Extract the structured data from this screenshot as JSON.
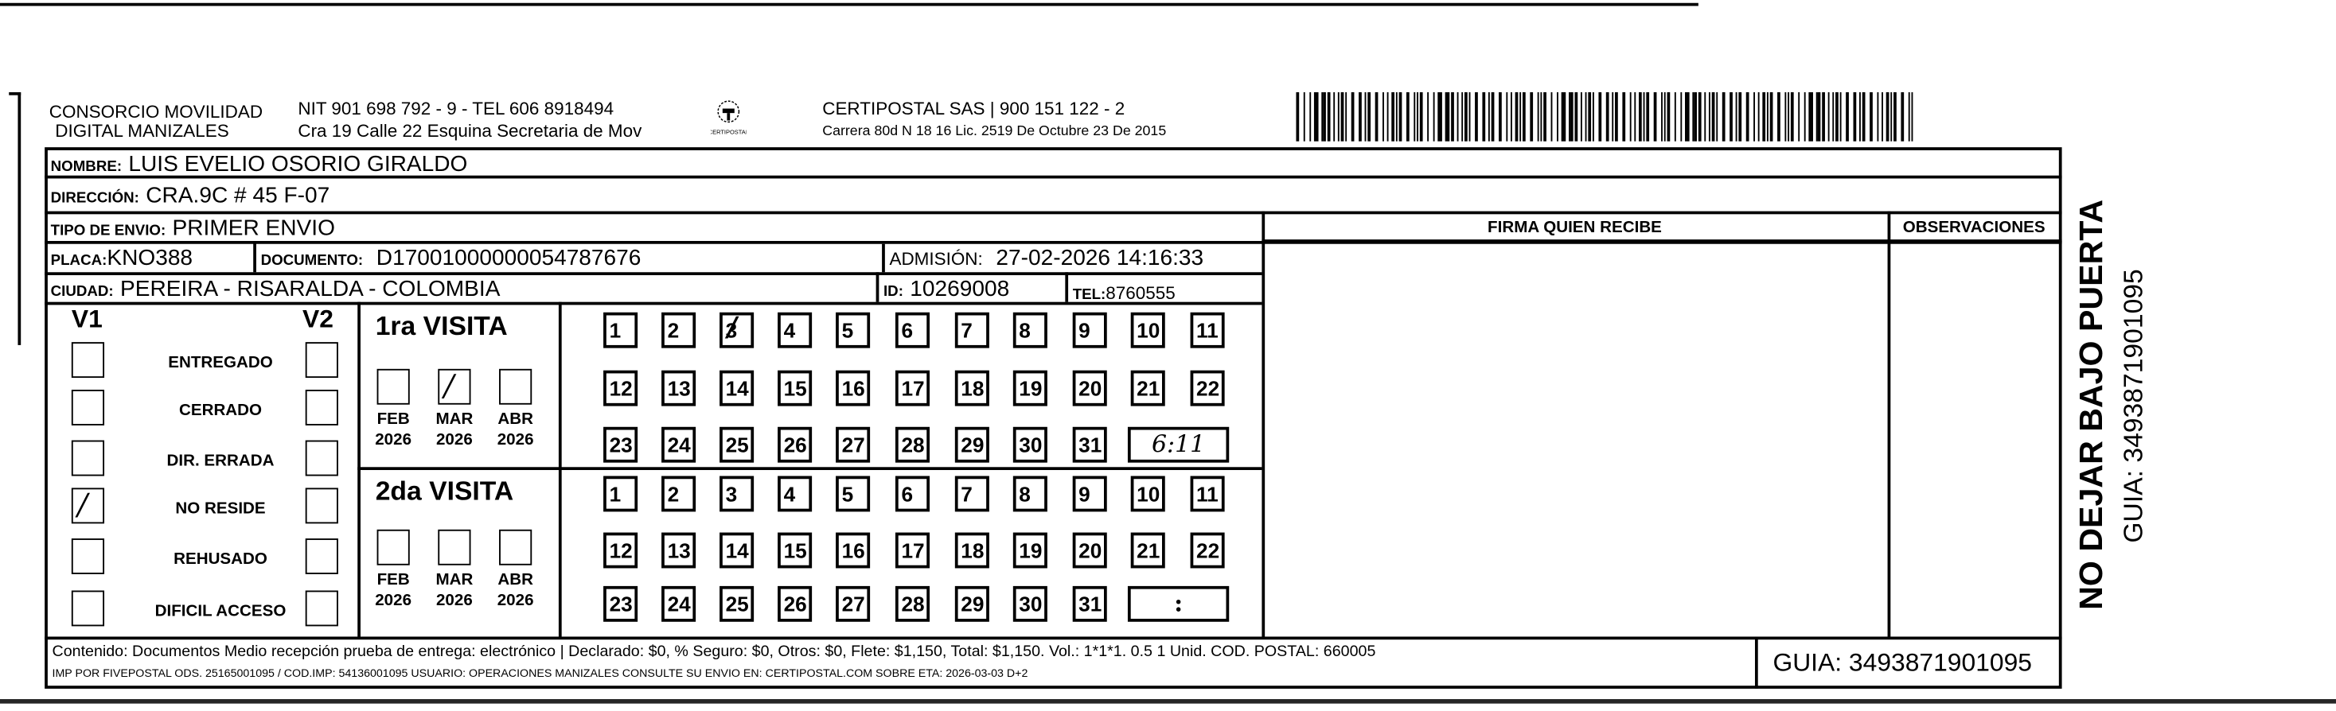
{
  "header": {
    "company_line1": "CONSORCIO MOVILIDAD",
    "company_line2": "DIGITAL MANIZALES",
    "nit_line": "NIT 901 698 792 - 9 - TEL 606 8918494",
    "address_line": "Cra 19 Calle 22 Esquina Secretaria de Mov",
    "logo_text": "CERTIPOSTAL",
    "carrier_line": "CERTIPOSTAL SAS | 900 151 122 - 2",
    "carrier_address": "Carrera 80d N 18 16  Lic. 2519 De Octubre 23 De 2015",
    "barcode_icon": "barcode-icon"
  },
  "recipient": {
    "nombre_label": "NOMBRE:",
    "nombre": "LUIS EVELIO OSORIO GIRALDO",
    "direccion_label": "DIRECCIÓN:",
    "direccion": "CRA.9C #  45 F-07",
    "tipo_label": "TIPO DE ENVIO:",
    "tipo": "PRIMER ENVIO",
    "placa_label": "PLACA:",
    "placa": "KNO388",
    "documento_label": "DOCUMENTO:",
    "documento": "D17001000000054787676",
    "admision_label": "ADMISIÓN:",
    "admision": "27-02-2026 14:16:33",
    "ciudad_label": "CIUDAD:",
    "ciudad": "PEREIRA - RISARALDA - COLOMBIA",
    "id_label": "ID:",
    "id": "10269008",
    "tel_label": "TEL:",
    "tel": "8760555"
  },
  "signature": {
    "firma_label": "FIRMA QUIEN RECIBE",
    "observaciones_label": "OBSERVACIONES"
  },
  "status": {
    "v1_label": "V1",
    "v2_label": "V2",
    "items": [
      {
        "label": "ENTREGADO",
        "v1": false,
        "v2": false
      },
      {
        "label": "CERRADO",
        "v1": false,
        "v2": false
      },
      {
        "label": "DIR. ERRADA",
        "v1": false,
        "v2": false
      },
      {
        "label": "NO RESIDE",
        "v1": true,
        "v2": false
      },
      {
        "label": "REHUSADO",
        "v1": false,
        "v2": false
      },
      {
        "label": "DIFICIL ACCESO",
        "v1": false,
        "v2": false
      }
    ]
  },
  "visits": [
    {
      "title": "1ra VISITA",
      "months": [
        {
          "month": "FEB",
          "year": "2026",
          "checked": false
        },
        {
          "month": "MAR",
          "year": "2026",
          "checked": true
        },
        {
          "month": "ABR",
          "year": "2026",
          "checked": false
        }
      ],
      "marked_day": 3,
      "time": "6:11"
    },
    {
      "title": "2da VISITA",
      "months": [
        {
          "month": "FEB",
          "year": "2026",
          "checked": false
        },
        {
          "month": "MAR",
          "year": "2026",
          "checked": false
        },
        {
          "month": "ABR",
          "year": "2026",
          "checked": false
        }
      ],
      "marked_day": null,
      "time": ":"
    }
  ],
  "footer": {
    "contenido": "Contenido: Documentos Medio recepción prueba de entrega: electrónico | Declarado: $0, % Seguro: $0, Otros: $0, Flete: $1,150, Total: $1,150. Vol.: 1*1*1. 0.5  1 Unid. COD. POSTAL: 660005",
    "imp": "IMP POR FIVEPOSTAL ODS. 25165001095 / COD.IMP: 54136001095 USUARIO: OPERACIONES MANIZALES CONSULTE SU ENVIO EN: CERTIPOSTAL.COM SOBRE ETA: 2026-03-03 D+2",
    "guia": "GUIA: 3493871901095"
  },
  "side": {
    "warning": "NO DEJAR BAJO PUERTA",
    "guia": "GUIA: 3493871901095"
  }
}
